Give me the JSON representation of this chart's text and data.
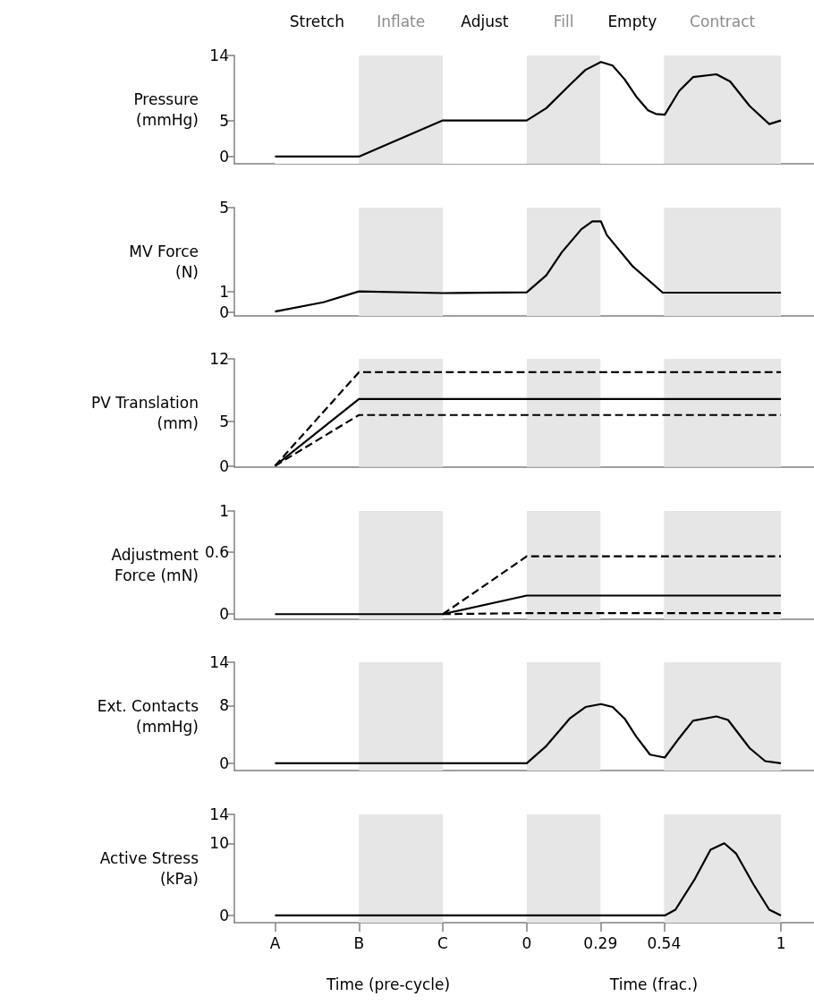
{
  "chart_data": [
    {
      "type": "line",
      "ylabel": "Pressure\n(mmHg)",
      "xlim": [
        -1.15,
        1.13
      ],
      "ylim": [
        -1,
        14
      ],
      "yticks": [
        0,
        5,
        14
      ],
      "tick_labels": "y",
      "marker": "none",
      "bands": [
        {
          "axis": "x",
          "from": -0.99,
          "to": -0.66,
          "label": "Stretch",
          "color": "#ffffff"
        },
        {
          "axis": "x",
          "from": -0.66,
          "to": -0.33,
          "label": "Inflate",
          "color": "#e6e6e6"
        },
        {
          "axis": "x",
          "from": -0.33,
          "to": 0,
          "label": "Adjust",
          "color": "#ffffff"
        },
        {
          "axis": "x",
          "from": 0,
          "to": 0.29,
          "label": "Fill",
          "color": "#e6e6e6"
        },
        {
          "axis": "x",
          "from": 0.29,
          "to": 0.54,
          "label": "Empty",
          "color": "#ffffff"
        },
        {
          "axis": "x",
          "from": 0.54,
          "to": 1,
          "label": "Contract",
          "color": "#e6e6e6"
        }
      ],
      "series": [
        {
          "color": "#000000",
          "x": [
            -0.99,
            -0.66,
            -0.33,
            0,
            0.077,
            0.169,
            0.231,
            0.292,
            0.338,
            0.385,
            0.431,
            0.477,
            0.508,
            0.543,
            0.6,
            0.654,
            0.746,
            0.8,
            0.877,
            0.954,
            1
          ],
          "values": [
            0,
            0,
            5,
            5,
            6.7,
            9.9,
            12.0,
            13.1,
            12.6,
            10.7,
            8.3,
            6.4,
            5.9,
            5.8,
            9.1,
            11.0,
            11.4,
            10.4,
            7.0,
            4.5,
            5.0
          ]
        }
      ]
    },
    {
      "type": "line",
      "ylabel": "MV Force\n(N)",
      "xlim": [
        -1.15,
        1.13
      ],
      "ylim": [
        -0.17,
        5
      ],
      "yticks": [
        0,
        1,
        5
      ],
      "tick_labels": "y",
      "marker": "none",
      "bands": [
        {
          "axis": "x",
          "from": -0.66,
          "to": -0.33,
          "color": "#e6e6e6"
        },
        {
          "axis": "x",
          "from": 0,
          "to": 0.29,
          "color": "#e6e6e6"
        },
        {
          "axis": "x",
          "from": 0.54,
          "to": 1,
          "color": "#e6e6e6"
        }
      ],
      "series": [
        {
          "color": "#000000",
          "x": [
            -0.99,
            -0.8,
            -0.66,
            -0.33,
            0,
            0.077,
            0.138,
            0.215,
            0.258,
            0.292,
            0.315,
            0.415,
            0.535,
            1
          ],
          "values": [
            0.04,
            0.48,
            1.0,
            0.92,
            0.96,
            1.77,
            2.87,
            3.97,
            4.34,
            4.34,
            3.69,
            2.22,
            0.94,
            0.94
          ]
        }
      ]
    },
    {
      "type": "line",
      "ylabel": "PV Translation\n(mm)",
      "xlim": [
        -1.15,
        1.13
      ],
      "ylim": [
        -0.13,
        12
      ],
      "yticks": [
        0,
        5,
        12
      ],
      "tick_labels": "y",
      "marker": "none",
      "bands": [
        {
          "axis": "x",
          "from": -0.66,
          "to": -0.33,
          "color": "#e6e6e6"
        },
        {
          "axis": "x",
          "from": 0,
          "to": 0.29,
          "color": "#e6e6e6"
        },
        {
          "axis": "x",
          "from": 0.54,
          "to": 1,
          "color": "#e6e6e6"
        }
      ],
      "series": [
        {
          "color": "#000000",
          "line_style": "dashed",
          "x": [
            -0.99,
            -0.66,
            1
          ],
          "values": [
            0,
            10.5,
            10.5
          ]
        },
        {
          "color": "#000000",
          "line_style": "solid",
          "x": [
            -0.99,
            -0.66,
            1
          ],
          "values": [
            0,
            7.5,
            7.5
          ]
        },
        {
          "color": "#000000",
          "line_style": "dashed",
          "x": [
            -0.99,
            -0.66,
            1
          ],
          "values": [
            0,
            5.7,
            5.7
          ]
        }
      ]
    },
    {
      "type": "line",
      "ylabel": "Adjustment\nForce (mN)",
      "xlim": [
        -1.15,
        1.13
      ],
      "ylim": [
        -0.05,
        1
      ],
      "yticks": [
        0,
        0.6,
        1
      ],
      "tick_labels": "y",
      "marker": "none",
      "bands": [
        {
          "axis": "x",
          "from": -0.66,
          "to": -0.33,
          "color": "#e6e6e6"
        },
        {
          "axis": "x",
          "from": 0,
          "to": 0.29,
          "color": "#e6e6e6"
        },
        {
          "axis": "x",
          "from": 0.54,
          "to": 1,
          "color": "#e6e6e6"
        }
      ],
      "series": [
        {
          "color": "#000000",
          "line_style": "dashed",
          "x": [
            -0.33,
            0,
            1
          ],
          "values": [
            0,
            0.56,
            0.56
          ]
        },
        {
          "color": "#000000",
          "line_style": "solid",
          "x": [
            -0.99,
            -0.33,
            0,
            1
          ],
          "values": [
            0,
            0,
            0.18,
            0.18
          ]
        },
        {
          "color": "#000000",
          "line_style": "dashed",
          "x": [
            -0.33,
            0,
            1
          ],
          "values": [
            0,
            0.01,
            0.01
          ]
        }
      ]
    },
    {
      "type": "line",
      "ylabel": "Ext. Contacts\n(mmHg)",
      "xlim": [
        -1.15,
        1.13
      ],
      "ylim": [
        -1,
        14
      ],
      "yticks": [
        0,
        8,
        14
      ],
      "tick_labels": "y",
      "marker": "none",
      "bands": [
        {
          "axis": "x",
          "from": -0.66,
          "to": -0.33,
          "color": "#e6e6e6"
        },
        {
          "axis": "x",
          "from": 0,
          "to": 0.29,
          "color": "#e6e6e6"
        },
        {
          "axis": "x",
          "from": 0.54,
          "to": 1,
          "color": "#e6e6e6"
        }
      ],
      "series": [
        {
          "color": "#000000",
          "x": [
            -0.99,
            0,
            0.077,
            0.169,
            0.231,
            0.292,
            0.338,
            0.385,
            0.431,
            0.485,
            0.543,
            0.6,
            0.654,
            0.746,
            0.792,
            0.877,
            0.938,
            1
          ],
          "values": [
            0,
            0,
            2.4,
            6.2,
            7.8,
            8.2,
            7.8,
            6.2,
            3.7,
            1.2,
            0.8,
            3.5,
            5.9,
            6.5,
            6.0,
            2.1,
            0.3,
            0
          ]
        }
      ]
    },
    {
      "type": "line",
      "ylabel": "Active Stress\n(kPa)",
      "xlabel": "Time (pre-cycle)",
      "annotations": [
        "Time (frac.)"
      ],
      "xlim": [
        -1.15,
        1.13
      ],
      "ylim": [
        -1,
        14
      ],
      "yticks": [
        0,
        10,
        14
      ],
      "marker": "none",
      "xticks": [
        {
          "value": -0.99,
          "label": "A"
        },
        {
          "value": -0.66,
          "label": "B"
        },
        {
          "value": -0.33,
          "label": "C"
        },
        0,
        0.29,
        0.54,
        1
      ],
      "bands": [
        {
          "axis": "x",
          "from": -0.66,
          "to": -0.33,
          "color": "#e6e6e6"
        },
        {
          "axis": "x",
          "from": 0,
          "to": 0.29,
          "color": "#e6e6e6"
        },
        {
          "axis": "x",
          "from": 0.54,
          "to": 1,
          "color": "#e6e6e6"
        }
      ],
      "series": [
        {
          "color": "#000000",
          "x": [
            -0.99,
            0.543,
            0.585,
            0.662,
            0.723,
            0.777,
            0.823,
            0.892,
            0.954,
            1
          ],
          "values": [
            0,
            0,
            0.8,
            5.1,
            9.1,
            10.0,
            8.6,
            4.3,
            0.8,
            0
          ]
        }
      ]
    }
  ]
}
